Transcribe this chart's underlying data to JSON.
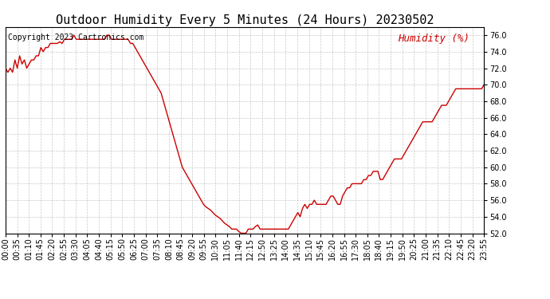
{
  "title": "Outdoor Humidity Every 5 Minutes (24 Hours) 20230502",
  "copyright_text": "Copyright 2023 Cartronics.com",
  "legend_label": "Humidity (%)",
  "background_color": "#ffffff",
  "plot_bg_color": "#ffffff",
  "line_color": "#cc0000",
  "grid_color": "#bbbbbb",
  "title_color": "#000000",
  "copyright_color": "#000000",
  "legend_color": "#cc0000",
  "ylim": [
    52.0,
    77.0
  ],
  "yticks": [
    52.0,
    54.0,
    56.0,
    58.0,
    60.0,
    62.0,
    64.0,
    66.0,
    68.0,
    70.0,
    72.0,
    74.0,
    76.0
  ],
  "humidity_values": [
    72.0,
    71.5,
    72.0,
    71.5,
    73.0,
    72.0,
    73.5,
    72.5,
    73.0,
    72.0,
    72.5,
    73.0,
    73.0,
    73.5,
    73.5,
    74.5,
    74.0,
    74.5,
    74.5,
    75.0,
    75.0,
    75.0,
    75.0,
    75.2,
    75.0,
    75.5,
    75.5,
    75.5,
    75.5,
    76.0,
    75.5,
    75.5,
    75.5,
    75.5,
    75.5,
    75.5,
    75.5,
    75.5,
    75.5,
    75.5,
    75.5,
    75.5,
    75.5,
    76.0,
    76.0,
    75.5,
    75.5,
    75.5,
    75.5,
    75.5,
    75.5,
    75.5,
    75.5,
    75.0,
    75.0,
    74.5,
    74.0,
    73.5,
    73.0,
    72.5,
    72.0,
    71.5,
    71.0,
    70.5,
    70.0,
    69.5,
    69.0,
    68.0,
    67.0,
    66.0,
    65.0,
    64.0,
    63.0,
    62.0,
    61.0,
    60.0,
    59.5,
    59.0,
    58.5,
    58.0,
    57.5,
    57.0,
    56.5,
    56.0,
    55.5,
    55.2,
    55.0,
    54.8,
    54.5,
    54.2,
    54.0,
    53.8,
    53.5,
    53.2,
    53.0,
    52.8,
    52.5,
    52.5,
    52.5,
    52.2,
    52.0,
    52.0,
    52.0,
    52.5,
    52.5,
    52.5,
    52.8,
    53.0,
    52.5,
    52.5,
    52.5,
    52.5,
    52.5,
    52.5,
    52.5,
    52.5,
    52.5,
    52.5,
    52.5,
    52.5,
    52.5,
    53.0,
    53.5,
    54.0,
    54.5,
    54.0,
    55.0,
    55.5,
    55.0,
    55.5,
    55.5,
    56.0,
    55.5,
    55.5,
    55.5,
    55.5,
    55.5,
    56.0,
    56.5,
    56.5,
    56.0,
    55.5,
    55.5,
    56.5,
    57.0,
    57.5,
    57.5,
    58.0,
    58.0,
    58.0,
    58.0,
    58.0,
    58.5,
    58.5,
    59.0,
    59.0,
    59.5,
    59.5,
    59.5,
    58.5,
    58.5,
    59.0,
    59.5,
    60.0,
    60.5,
    61.0,
    61.0,
    61.0,
    61.0,
    61.5,
    62.0,
    62.5,
    63.0,
    63.5,
    64.0,
    64.5,
    65.0,
    65.5,
    65.5,
    65.5,
    65.5,
    65.5,
    66.0,
    66.5,
    67.0,
    67.5,
    67.5,
    67.5,
    68.0,
    68.5,
    69.0,
    69.5,
    69.5,
    69.5,
    69.5,
    69.5,
    69.5,
    69.5,
    69.5,
    69.5,
    69.5,
    69.5,
    69.5,
    70.0
  ],
  "xtick_labels": [
    "00:00",
    "00:35",
    "01:10",
    "01:45",
    "02:20",
    "02:55",
    "03:30",
    "04:05",
    "04:40",
    "05:15",
    "05:50",
    "06:25",
    "07:00",
    "07:35",
    "08:10",
    "08:45",
    "09:20",
    "09:55",
    "10:30",
    "11:05",
    "11:40",
    "12:15",
    "12:50",
    "13:25",
    "14:00",
    "14:35",
    "15:10",
    "15:45",
    "16:20",
    "16:55",
    "17:30",
    "18:05",
    "18:40",
    "19:15",
    "19:50",
    "20:25",
    "21:00",
    "21:35",
    "22:10",
    "22:45",
    "23:20",
    "23:55"
  ],
  "title_fontsize": 11,
  "copyright_fontsize": 7,
  "legend_fontsize": 9,
  "tick_fontsize": 7,
  "line_width": 1.0
}
